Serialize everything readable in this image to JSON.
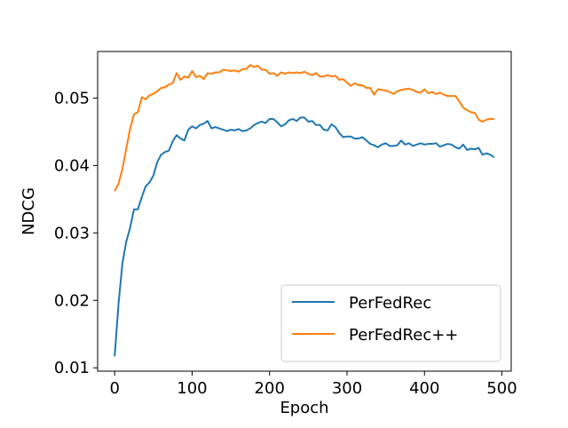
{
  "chart_data": {
    "type": "line",
    "title": "",
    "xlabel": "Epoch",
    "ylabel": "NDCG",
    "xlim": [
      -22,
      512
    ],
    "ylim": [
      0.0095,
      0.0569
    ],
    "xticks": [
      0,
      100,
      200,
      300,
      400,
      500
    ],
    "xtick_labels": [
      "0",
      "100",
      "200",
      "300",
      "400",
      "500"
    ],
    "yticks": [
      0.01,
      0.02,
      0.03,
      0.04,
      0.05
    ],
    "ytick_labels": [
      "0.01",
      "0.02",
      "0.03",
      "0.04",
      "0.05"
    ],
    "grid": false,
    "legend_position": "lower-right",
    "x": [
      0,
      5,
      10,
      15,
      20,
      25,
      30,
      35,
      40,
      45,
      50,
      55,
      60,
      65,
      70,
      75,
      80,
      85,
      90,
      95,
      100,
      105,
      110,
      115,
      120,
      125,
      130,
      135,
      140,
      145,
      150,
      155,
      160,
      165,
      170,
      175,
      180,
      185,
      190,
      195,
      200,
      205,
      210,
      215,
      220,
      225,
      230,
      235,
      240,
      245,
      250,
      255,
      260,
      265,
      270,
      275,
      280,
      285,
      290,
      295,
      300,
      305,
      310,
      315,
      320,
      325,
      330,
      335,
      340,
      345,
      350,
      355,
      360,
      365,
      370,
      375,
      380,
      385,
      390,
      395,
      400,
      405,
      410,
      415,
      420,
      425,
      430,
      435,
      440,
      445,
      450,
      455,
      460,
      465,
      470,
      475,
      480,
      485,
      490
    ],
    "series": [
      {
        "name": "PerFedRec",
        "color": "#1f77b4",
        "values": [
          0.0117,
          0.0195,
          0.0255,
          0.0287,
          0.0308,
          0.0335,
          0.0335,
          0.0353,
          0.0369,
          0.0375,
          0.0385,
          0.0405,
          0.0416,
          0.042,
          0.0422,
          0.0436,
          0.0445,
          0.044,
          0.0437,
          0.0453,
          0.0458,
          0.0455,
          0.046,
          0.0462,
          0.0466,
          0.0455,
          0.0457,
          0.0455,
          0.0453,
          0.0451,
          0.0453,
          0.0452,
          0.0454,
          0.0451,
          0.0452,
          0.0455,
          0.046,
          0.0463,
          0.0465,
          0.0463,
          0.0469,
          0.0469,
          0.0464,
          0.0458,
          0.0461,
          0.0467,
          0.0469,
          0.0466,
          0.0471,
          0.0471,
          0.0465,
          0.0466,
          0.046,
          0.046,
          0.0453,
          0.0452,
          0.0461,
          0.0457,
          0.0448,
          0.0442,
          0.0443,
          0.0443,
          0.044,
          0.044,
          0.0442,
          0.0437,
          0.0432,
          0.043,
          0.0427,
          0.0431,
          0.0433,
          0.0429,
          0.0429,
          0.043,
          0.0437,
          0.0431,
          0.0433,
          0.0429,
          0.0431,
          0.0433,
          0.0431,
          0.0432,
          0.0432,
          0.0433,
          0.0428,
          0.043,
          0.0432,
          0.0431,
          0.0427,
          0.0425,
          0.0431,
          0.0423,
          0.0425,
          0.0424,
          0.0426,
          0.0416,
          0.0418,
          0.0416,
          0.0412
        ]
      },
      {
        "name": "PerFedRec++",
        "color": "#ff7f0e",
        "values": [
          0.0362,
          0.0373,
          0.0395,
          0.0425,
          0.0455,
          0.0476,
          0.0479,
          0.0501,
          0.0498,
          0.0504,
          0.0506,
          0.051,
          0.0515,
          0.0516,
          0.052,
          0.0522,
          0.0537,
          0.0527,
          0.0532,
          0.053,
          0.054,
          0.0531,
          0.0533,
          0.0528,
          0.0537,
          0.0536,
          0.0538,
          0.0538,
          0.0542,
          0.0541,
          0.054,
          0.0541,
          0.0539,
          0.0543,
          0.0543,
          0.0549,
          0.0546,
          0.0548,
          0.0542,
          0.0542,
          0.0536,
          0.0537,
          0.0533,
          0.0538,
          0.0536,
          0.0538,
          0.0537,
          0.0538,
          0.0537,
          0.0539,
          0.0536,
          0.0534,
          0.0537,
          0.0532,
          0.0532,
          0.0534,
          0.0532,
          0.0533,
          0.0527,
          0.0528,
          0.0523,
          0.0518,
          0.0522,
          0.0519,
          0.0519,
          0.0515,
          0.0515,
          0.0505,
          0.0513,
          0.0512,
          0.0511,
          0.0509,
          0.0506,
          0.051,
          0.0512,
          0.0513,
          0.0514,
          0.0512,
          0.0509,
          0.0508,
          0.0513,
          0.0507,
          0.0509,
          0.0506,
          0.0508,
          0.0505,
          0.0503,
          0.0503,
          0.0503,
          0.0495,
          0.0486,
          0.0482,
          0.0479,
          0.0478,
          0.0468,
          0.0465,
          0.0468,
          0.0469,
          0.0469
        ]
      }
    ]
  }
}
